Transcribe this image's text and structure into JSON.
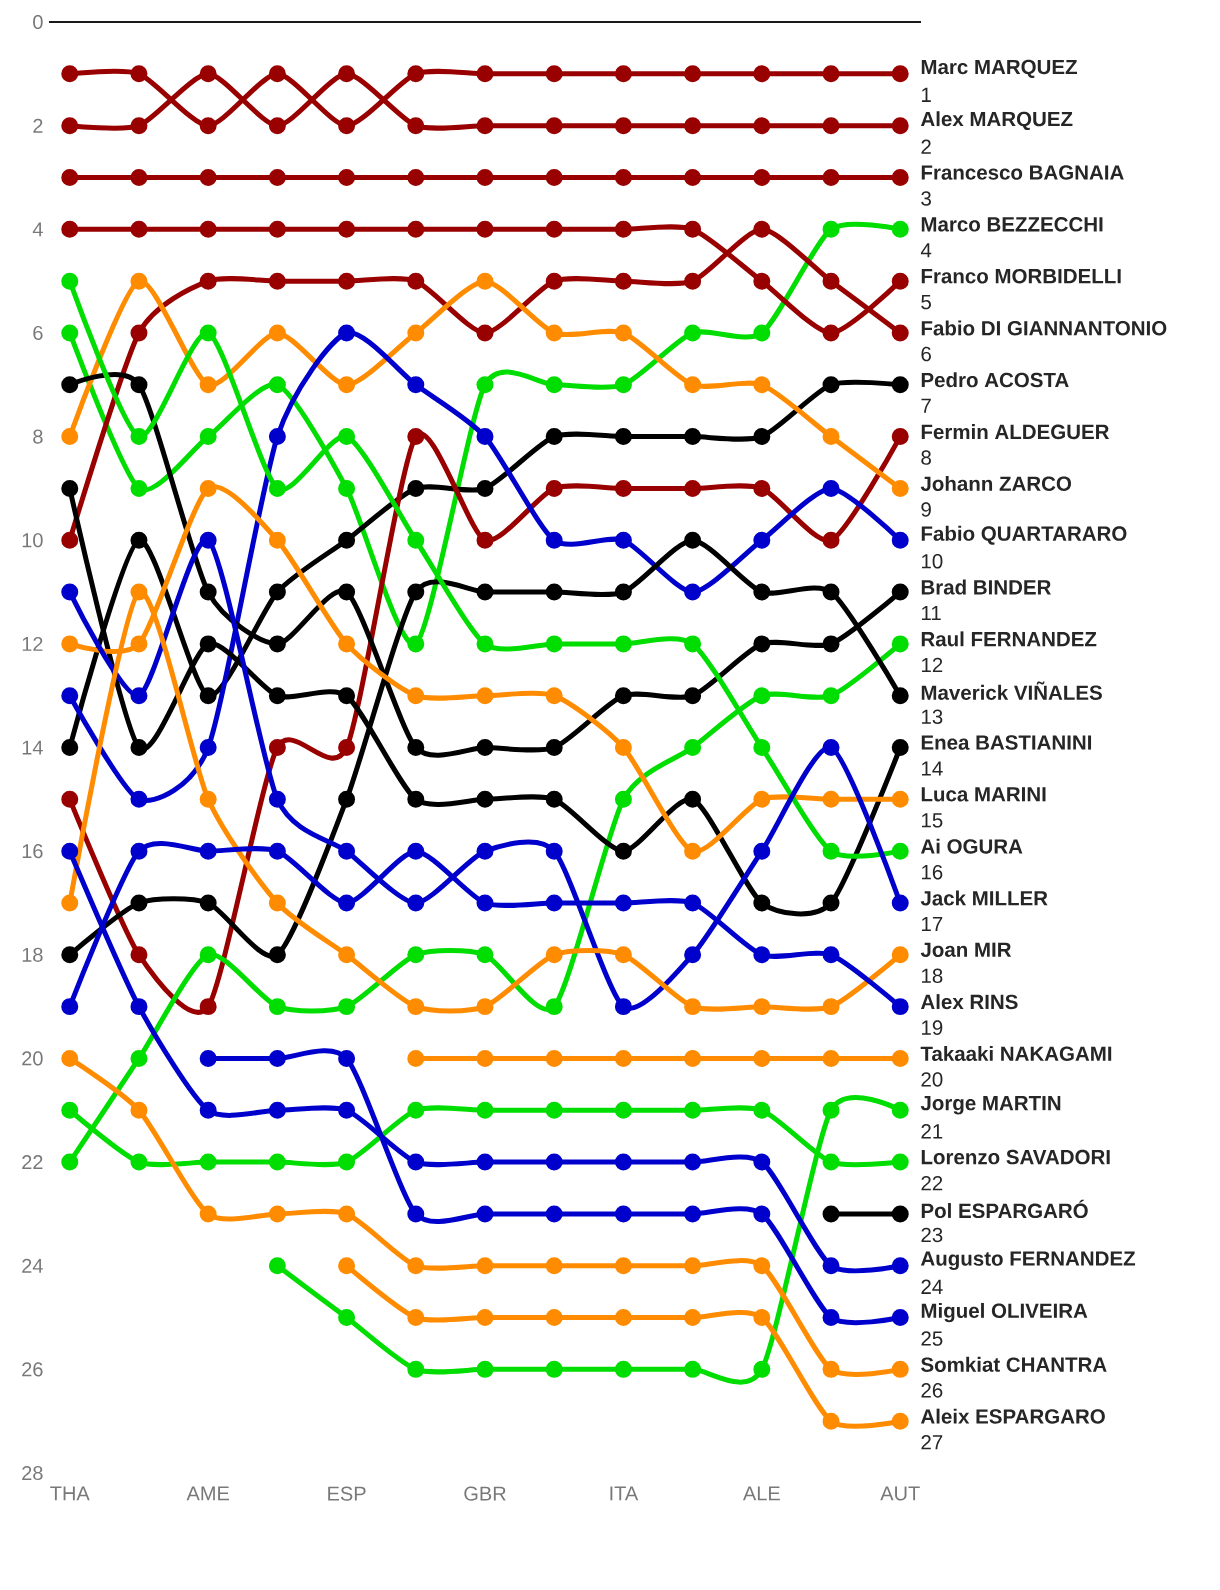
{
  "chart_data": {
    "type": "line",
    "categories": [
      "THA",
      null,
      "AME",
      null,
      "ESP",
      null,
      "GBR",
      null,
      "ITA",
      null,
      "ALE",
      null,
      "AUT"
    ],
    "ylim": [
      28,
      0
    ],
    "yticks": [
      0,
      2,
      4,
      6,
      8,
      10,
      12,
      14,
      16,
      18,
      20,
      22,
      24,
      26,
      28
    ],
    "marker": "circle",
    "line_style": "solid",
    "series": [
      {
        "name": "Marc MARQUEZ",
        "color": "#990000",
        "values": [
          1,
          1,
          2,
          1,
          2,
          1,
          1,
          1,
          1,
          1,
          1,
          1,
          1
        ],
        "value_labels": [
          null,
          null,
          null,
          null,
          null,
          null,
          null,
          null,
          null,
          null,
          null,
          null,
          "1"
        ]
      },
      {
        "name": "Alex MARQUEZ",
        "color": "#990000",
        "values": [
          2,
          2,
          1,
          2,
          1,
          2,
          2,
          2,
          2,
          2,
          2,
          2,
          2
        ],
        "value_labels": [
          null,
          null,
          null,
          null,
          null,
          null,
          null,
          null,
          null,
          null,
          null,
          null,
          "2"
        ]
      },
      {
        "name": "Francesco BAGNAIA",
        "color": "#990000",
        "values": [
          3,
          3,
          3,
          3,
          3,
          3,
          3,
          3,
          3,
          3,
          3,
          3,
          3
        ],
        "value_labels": [
          null,
          null,
          null,
          null,
          null,
          null,
          null,
          null,
          null,
          null,
          null,
          null,
          "3"
        ]
      },
      {
        "name": "Marco BEZZECCHI",
        "color": "#00dd00",
        "values": [
          6,
          9,
          8,
          7,
          9,
          12,
          7,
          7,
          7,
          6,
          6,
          4,
          4
        ],
        "value_labels": [
          null,
          null,
          null,
          null,
          null,
          null,
          null,
          null,
          null,
          null,
          null,
          null,
          "4"
        ]
      },
      {
        "name": "Franco MORBIDELLI",
        "color": "#990000",
        "values": [
          4,
          4,
          4,
          4,
          4,
          4,
          4,
          4,
          4,
          4,
          5,
          6,
          5
        ],
        "value_labels": [
          null,
          null,
          null,
          null,
          null,
          null,
          null,
          null,
          null,
          null,
          null,
          null,
          "5"
        ]
      },
      {
        "name": "Fabio DI GIANNANTONIO",
        "color": "#990000",
        "values": [
          10,
          6,
          5,
          5,
          5,
          5,
          6,
          5,
          5,
          5,
          4,
          5,
          6
        ],
        "value_labels": [
          null,
          null,
          null,
          null,
          null,
          null,
          null,
          null,
          null,
          null,
          null,
          null,
          "6"
        ]
      },
      {
        "name": "Pedro ACOSTA",
        "color": "#000000",
        "values": [
          14,
          10,
          13,
          11,
          10,
          9,
          9,
          8,
          8,
          8,
          8,
          7,
          7
        ],
        "value_labels": [
          null,
          null,
          null,
          null,
          null,
          null,
          null,
          null,
          null,
          null,
          null,
          null,
          "7"
        ]
      },
      {
        "name": "Fermin ALDEGUER",
        "color": "#990000",
        "values": [
          15,
          18,
          19,
          14,
          14,
          8,
          10,
          9,
          9,
          9,
          9,
          10,
          8
        ],
        "value_labels": [
          null,
          null,
          null,
          null,
          null,
          null,
          null,
          null,
          null,
          null,
          null,
          null,
          "8"
        ]
      },
      {
        "name": "Johann ZARCO",
        "color": "#ff8c00",
        "values": [
          8,
          5,
          7,
          6,
          7,
          6,
          5,
          6,
          6,
          7,
          7,
          8,
          9
        ],
        "value_labels": [
          null,
          null,
          null,
          null,
          null,
          null,
          null,
          null,
          null,
          null,
          null,
          null,
          "9"
        ]
      },
      {
        "name": "Fabio QUARTARARO",
        "color": "#0000cc",
        "values": [
          13,
          15,
          14,
          8,
          6,
          7,
          8,
          10,
          10,
          11,
          10,
          9,
          10
        ],
        "value_labels": [
          null,
          null,
          null,
          null,
          null,
          null,
          null,
          null,
          null,
          null,
          null,
          null,
          "10"
        ]
      },
      {
        "name": "Brad BINDER",
        "color": "#000000",
        "values": [
          7,
          7,
          11,
          12,
          11,
          14,
          14,
          14,
          13,
          13,
          12,
          12,
          11
        ],
        "value_labels": [
          null,
          null,
          null,
          null,
          null,
          null,
          null,
          null,
          null,
          null,
          null,
          null,
          "11"
        ]
      },
      {
        "name": "Raul FERNANDEZ",
        "color": "#00dd00",
        "values": [
          22,
          20,
          18,
          19,
          19,
          18,
          18,
          19,
          15,
          14,
          13,
          13,
          12
        ],
        "value_labels": [
          null,
          null,
          null,
          null,
          null,
          null,
          null,
          null,
          null,
          null,
          null,
          null,
          "12"
        ]
      },
      {
        "name": "Maverick VIÑALES",
        "color": "#000000",
        "values": [
          18,
          17,
          17,
          18,
          15,
          11,
          11,
          11,
          11,
          10,
          11,
          11,
          13
        ],
        "value_labels": [
          null,
          null,
          null,
          null,
          null,
          null,
          null,
          null,
          null,
          null,
          null,
          null,
          "13"
        ]
      },
      {
        "name": "Enea BASTIANINI",
        "color": "#000000",
        "values": [
          9,
          14,
          12,
          13,
          13,
          15,
          15,
          15,
          16,
          15,
          17,
          17,
          14
        ],
        "value_labels": [
          null,
          null,
          null,
          null,
          null,
          null,
          null,
          null,
          null,
          null,
          null,
          null,
          "14"
        ]
      },
      {
        "name": "Luca MARINI",
        "color": "#ff8c00",
        "values": [
          12,
          12,
          9,
          10,
          12,
          13,
          13,
          13,
          14,
          16,
          15,
          15,
          15
        ],
        "value_labels": [
          null,
          null,
          null,
          null,
          null,
          null,
          null,
          null,
          null,
          null,
          null,
          null,
          "15"
        ]
      },
      {
        "name": "Ai OGURA",
        "color": "#00dd00",
        "values": [
          5,
          8,
          6,
          9,
          8,
          10,
          12,
          12,
          12,
          12,
          14,
          16,
          16
        ],
        "value_labels": [
          null,
          null,
          null,
          null,
          null,
          null,
          null,
          null,
          null,
          null,
          null,
          null,
          "16"
        ]
      },
      {
        "name": "Jack MILLER",
        "color": "#0000cc",
        "values": [
          11,
          13,
          10,
          15,
          16,
          17,
          16,
          16,
          19,
          18,
          16,
          14,
          17
        ],
        "value_labels": [
          null,
          null,
          null,
          null,
          null,
          null,
          null,
          null,
          null,
          null,
          null,
          null,
          "17"
        ]
      },
      {
        "name": "Joan MIR",
        "color": "#ff8c00",
        "values": [
          17,
          11,
          15,
          17,
          18,
          19,
          19,
          18,
          18,
          19,
          19,
          19,
          18
        ],
        "value_labels": [
          null,
          null,
          null,
          null,
          null,
          null,
          null,
          null,
          null,
          null,
          null,
          null,
          "18"
        ]
      },
      {
        "name": "Alex RINS",
        "color": "#0000cc",
        "values": [
          19,
          16,
          16,
          16,
          17,
          16,
          17,
          17,
          17,
          17,
          18,
          18,
          19
        ],
        "value_labels": [
          null,
          null,
          null,
          null,
          null,
          null,
          null,
          null,
          null,
          null,
          null,
          null,
          "19"
        ]
      },
      {
        "name": "Takaaki NAKAGAMI",
        "color": "#ff8c00",
        "values": [
          null,
          null,
          null,
          null,
          null,
          20,
          20,
          20,
          20,
          20,
          20,
          20,
          20
        ],
        "value_labels": [
          null,
          null,
          null,
          null,
          null,
          null,
          null,
          null,
          null,
          null,
          null,
          null,
          "20"
        ]
      },
      {
        "name": "Jorge MARTIN",
        "color": "#00dd00",
        "values": [
          null,
          null,
          null,
          24,
          25,
          26,
          26,
          26,
          26,
          26,
          26,
          21,
          21
        ],
        "value_labels": [
          null,
          null,
          null,
          null,
          null,
          null,
          null,
          null,
          null,
          null,
          null,
          null,
          "21"
        ]
      },
      {
        "name": "Lorenzo SAVADORI",
        "color": "#00dd00",
        "values": [
          21,
          22,
          22,
          22,
          22,
          21,
          21,
          21,
          21,
          21,
          21,
          22,
          22
        ],
        "value_labels": [
          null,
          null,
          null,
          null,
          null,
          null,
          null,
          null,
          null,
          null,
          null,
          null,
          "22"
        ]
      },
      {
        "name": "Pol ESPARGARÓ",
        "color": "#000000",
        "values": [
          null,
          null,
          null,
          null,
          null,
          null,
          null,
          null,
          null,
          null,
          null,
          23,
          23
        ],
        "value_labels": [
          null,
          null,
          null,
          null,
          null,
          null,
          null,
          null,
          null,
          null,
          null,
          null,
          "23"
        ]
      },
      {
        "name": "Augusto FERNANDEZ",
        "color": "#0000cc",
        "values": [
          16,
          19,
          21,
          21,
          21,
          22,
          22,
          22,
          22,
          22,
          22,
          24,
          24
        ],
        "value_labels": [
          null,
          null,
          null,
          null,
          null,
          null,
          null,
          null,
          null,
          null,
          null,
          null,
          "24"
        ]
      },
      {
        "name": "Miguel OLIVEIRA",
        "color": "#0000cc",
        "values": [
          null,
          null,
          20,
          20,
          20,
          23,
          23,
          23,
          23,
          23,
          23,
          25,
          25
        ],
        "value_labels": [
          null,
          null,
          null,
          null,
          null,
          null,
          null,
          null,
          null,
          null,
          null,
          null,
          "25"
        ]
      },
      {
        "name": "Somkiat CHANTRA",
        "color": "#ff8c00",
        "values": [
          20,
          21,
          23,
          23,
          23,
          24,
          24,
          24,
          24,
          24,
          24,
          26,
          26
        ],
        "value_labels": [
          null,
          null,
          null,
          null,
          null,
          null,
          null,
          null,
          null,
          null,
          null,
          null,
          "26"
        ]
      },
      {
        "name": "Aleix ESPARGARO",
        "color": "#ff8c00",
        "values": [
          null,
          null,
          null,
          null,
          24,
          25,
          25,
          25,
          25,
          25,
          25,
          27,
          27
        ],
        "value_labels": [
          null,
          null,
          null,
          null,
          null,
          null,
          null,
          null,
          null,
          null,
          null,
          null,
          "27"
        ]
      }
    ]
  }
}
